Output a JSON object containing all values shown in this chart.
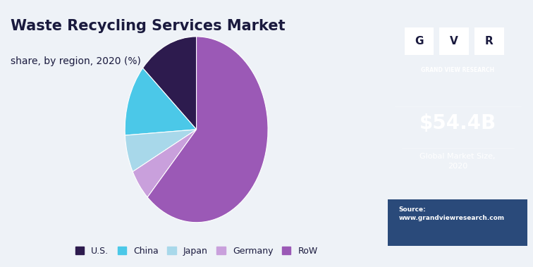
{
  "title": "Waste Recycling Services Market",
  "subtitle": "share, by region, 2020 (%)",
  "labels": [
    "U.S.",
    "China",
    "Japan",
    "Germany",
    "RoW"
  ],
  "values": [
    13.5,
    12.5,
    6.5,
    5.5,
    62.0
  ],
  "colors": [
    "#2d1b4e",
    "#4bc8e8",
    "#a8d8ea",
    "#c9a0dc",
    "#9b59b6"
  ],
  "startangle": 90,
  "bg_color": "#eef2f7",
  "right_panel_color": "#1a1a3e",
  "market_size": "$54.4B",
  "market_label": "Global Market Size,\n2020",
  "source_text": "Source:\nwww.grandviewresearch.com",
  "legend_fontsize": 9,
  "title_fontsize": 15,
  "subtitle_fontsize": 10,
  "logo_letters": [
    "G",
    "V",
    "R"
  ],
  "grand_view_text": "GRAND VIEW RESEARCH",
  "top_bar_color": "#4fc3d0",
  "bottom_panel_color": "#2a4a7a"
}
